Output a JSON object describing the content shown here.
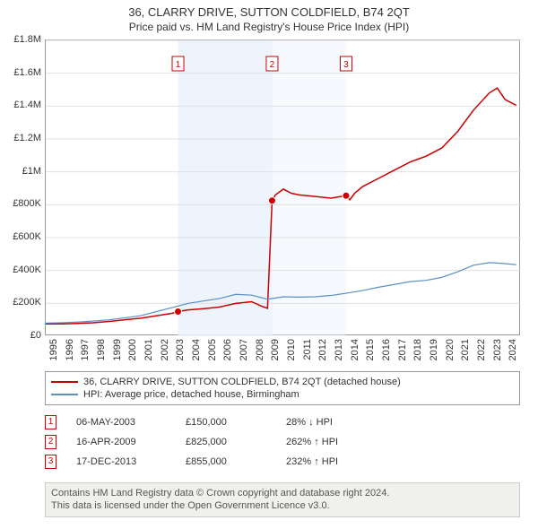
{
  "title": "36, CLARRY DRIVE, SUTTON COLDFIELD, B74 2QT",
  "subtitle": "Price paid vs. HM Land Registry's House Price Index (HPI)",
  "chart": {
    "type": "line",
    "xlim": [
      1995,
      2025
    ],
    "ylim": [
      0,
      1800000
    ],
    "ytick_step": 200000,
    "yticks": [
      "£0",
      "£200K",
      "£400K",
      "£600K",
      "£800K",
      "£1M",
      "£1.2M",
      "£1.4M",
      "£1.6M",
      "£1.8M"
    ],
    "xticks": [
      1995,
      1996,
      1997,
      1998,
      1999,
      2000,
      2001,
      2002,
      2003,
      2004,
      2005,
      2006,
      2007,
      2008,
      2009,
      2010,
      2011,
      2012,
      2013,
      2014,
      2015,
      2016,
      2017,
      2018,
      2019,
      2020,
      2021,
      2022,
      2023,
      2024
    ],
    "background_color": "#ffffff",
    "grid_color": "#e0e0e0",
    "band_color": "#eaf2fa",
    "series": [
      {
        "name": "price",
        "color": "#cc0000",
        "width": 1.5,
        "data": [
          [
            1995.0,
            75000
          ],
          [
            1996.0,
            75000
          ],
          [
            1997.0,
            78000
          ],
          [
            1998.0,
            82000
          ],
          [
            1999.0,
            90000
          ],
          [
            2000.0,
            100000
          ],
          [
            2001.0,
            110000
          ],
          [
            2002.0,
            125000
          ],
          [
            2003.0,
            140000
          ],
          [
            2003.35,
            150000
          ],
          [
            2004.0,
            160000
          ],
          [
            2005.0,
            168000
          ],
          [
            2006.0,
            178000
          ],
          [
            2007.0,
            200000
          ],
          [
            2008.0,
            210000
          ],
          [
            2008.7,
            180000
          ],
          [
            2009.0,
            170000
          ],
          [
            2009.29,
            825000
          ],
          [
            2009.5,
            860000
          ],
          [
            2010.0,
            895000
          ],
          [
            2010.5,
            870000
          ],
          [
            2011.0,
            860000
          ],
          [
            2012.0,
            850000
          ],
          [
            2013.0,
            840000
          ],
          [
            2013.96,
            855000
          ],
          [
            2014.2,
            830000
          ],
          [
            2014.5,
            870000
          ],
          [
            2015.0,
            910000
          ],
          [
            2016.0,
            960000
          ],
          [
            2017.0,
            1010000
          ],
          [
            2018.0,
            1060000
          ],
          [
            2019.0,
            1095000
          ],
          [
            2020.0,
            1145000
          ],
          [
            2021.0,
            1245000
          ],
          [
            2022.0,
            1375000
          ],
          [
            2023.0,
            1480000
          ],
          [
            2023.5,
            1510000
          ],
          [
            2024.0,
            1440000
          ],
          [
            2024.7,
            1405000
          ]
        ]
      },
      {
        "name": "hpi",
        "color": "#5b8fc7",
        "width": 1.2,
        "data": [
          [
            1995.0,
            80000
          ],
          [
            1996.0,
            82000
          ],
          [
            1997.0,
            86000
          ],
          [
            1998.0,
            92000
          ],
          [
            1999.0,
            100000
          ],
          [
            2000.0,
            112000
          ],
          [
            2001.0,
            125000
          ],
          [
            2002.0,
            150000
          ],
          [
            2003.0,
            175000
          ],
          [
            2004.0,
            200000
          ],
          [
            2005.0,
            215000
          ],
          [
            2006.0,
            230000
          ],
          [
            2007.0,
            255000
          ],
          [
            2008.0,
            250000
          ],
          [
            2009.0,
            225000
          ],
          [
            2010.0,
            240000
          ],
          [
            2011.0,
            238000
          ],
          [
            2012.0,
            240000
          ],
          [
            2013.0,
            248000
          ],
          [
            2014.0,
            262000
          ],
          [
            2015.0,
            278000
          ],
          [
            2016.0,
            298000
          ],
          [
            2017.0,
            315000
          ],
          [
            2018.0,
            332000
          ],
          [
            2019.0,
            340000
          ],
          [
            2020.0,
            358000
          ],
          [
            2021.0,
            392000
          ],
          [
            2022.0,
            432000
          ],
          [
            2023.0,
            448000
          ],
          [
            2024.0,
            442000
          ],
          [
            2024.7,
            435000
          ]
        ]
      }
    ],
    "sale_points": [
      {
        "x": 2003.35,
        "y": 150000
      },
      {
        "x": 2009.29,
        "y": 825000
      },
      {
        "x": 2013.96,
        "y": 855000
      }
    ],
    "marker_boxes": [
      {
        "n": "1",
        "x": 2003.35
      },
      {
        "n": "2",
        "x": 2009.29
      },
      {
        "n": "3",
        "x": 2013.96
      }
    ]
  },
  "legend": {
    "items": [
      {
        "color": "#cc0000",
        "label": "36, CLARRY DRIVE, SUTTON COLDFIELD, B74 2QT (detached house)"
      },
      {
        "color": "#5b8fc7",
        "label": "HPI: Average price, detached house, Birmingham"
      }
    ]
  },
  "events": [
    {
      "n": "1",
      "date": "06-MAY-2003",
      "price": "£150,000",
      "diff": "28% ↓ HPI"
    },
    {
      "n": "2",
      "date": "16-APR-2009",
      "price": "£825,000",
      "diff": "262% ↑ HPI"
    },
    {
      "n": "3",
      "date": "17-DEC-2013",
      "price": "£855,000",
      "diff": "232% ↑ HPI"
    }
  ],
  "footer": {
    "line1": "Contains HM Land Registry data © Crown copyright and database right 2024.",
    "line2": "This data is licensed under the Open Government Licence v3.0."
  }
}
